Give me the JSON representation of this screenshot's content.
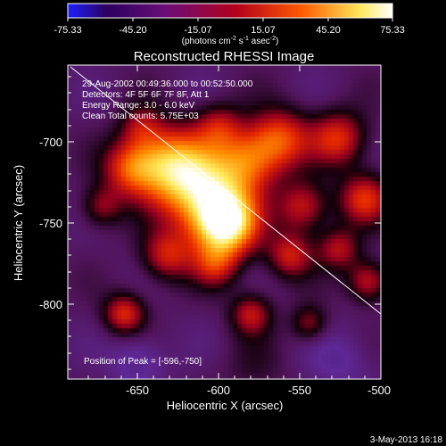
{
  "colorbar": {
    "ticks": [
      "-75.33",
      "-45.20",
      "-15.07",
      "15.07",
      "45.20",
      "75.33"
    ],
    "unit_label_parts": [
      "(photons cm",
      "-2",
      " s",
      "-1",
      " asec",
      "-2",
      ")"
    ],
    "colors": [
      "#1e1eff",
      "#2b0060",
      "#6a0e78",
      "#b3001a",
      "#ff5a00",
      "#ffe85a",
      "#ffffff"
    ]
  },
  "plot": {
    "title": "Reconstructed RHESSI Image",
    "xlabel": "Heliocentric X (arcsec)",
    "ylabel": "Heliocentric Y (arcsec)",
    "xticks": [
      "-650",
      "-600",
      "-550",
      "-500"
    ],
    "yticks": [
      "-700",
      "-750",
      "-800"
    ],
    "info_lines": [
      "29-Aug-2002 00:49:36.000 to 00:52:50.000",
      "Detectors: 4F 5F 6F 7F 8F, Att 1",
      "Energy Range: 3.0 - 6.0 keV",
      "Clean     Total counts: 5.75E+03"
    ],
    "peak_label": "Position of Peak = [-596,-750]",
    "peak": {
      "x": -596,
      "y": -750
    },
    "sources": [
      {
        "x": -596,
        "y": -750,
        "amp": 1.0,
        "s": 14
      },
      {
        "x": -612,
        "y": -728,
        "amp": 0.7,
        "s": 18
      },
      {
        "x": -632,
        "y": -712,
        "amp": 0.55,
        "s": 16
      },
      {
        "x": -654,
        "y": -716,
        "amp": 0.45,
        "s": 12
      },
      {
        "x": -582,
        "y": -712,
        "amp": 0.5,
        "s": 14
      },
      {
        "x": -562,
        "y": -698,
        "amp": 0.48,
        "s": 13
      },
      {
        "x": -526,
        "y": -698,
        "amp": 0.45,
        "s": 12
      },
      {
        "x": -510,
        "y": -735,
        "amp": 0.45,
        "s": 11
      },
      {
        "x": -548,
        "y": -740,
        "amp": 0.4,
        "s": 11
      },
      {
        "x": -556,
        "y": -770,
        "amp": 0.4,
        "s": 10
      },
      {
        "x": -526,
        "y": -766,
        "amp": 0.35,
        "s": 9
      },
      {
        "x": -632,
        "y": -770,
        "amp": 0.4,
        "s": 11
      },
      {
        "x": -602,
        "y": -776,
        "amp": 0.35,
        "s": 10
      },
      {
        "x": -658,
        "y": -806,
        "amp": 0.45,
        "s": 9
      },
      {
        "x": -580,
        "y": -806,
        "amp": 0.38,
        "s": 9
      },
      {
        "x": -508,
        "y": -786,
        "amp": 0.4,
        "s": 9
      },
      {
        "x": -544,
        "y": -812,
        "amp": 0.3,
        "s": 8
      },
      {
        "x": -600,
        "y": -690,
        "amp": 0.3,
        "s": 10
      },
      {
        "x": -648,
        "y": -690,
        "amp": 0.25,
        "s": 9
      },
      {
        "x": -672,
        "y": -740,
        "amp": 0.3,
        "s": 9
      },
      {
        "x": -578,
        "y": -840,
        "amp": 0.1,
        "s": 14
      },
      {
        "x": -650,
        "y": -835,
        "amp": -0.2,
        "s": 12
      },
      {
        "x": -525,
        "y": -835,
        "amp": -0.15,
        "s": 14
      }
    ]
  },
  "footer": {
    "date": "3-May-2013 16:18"
  }
}
